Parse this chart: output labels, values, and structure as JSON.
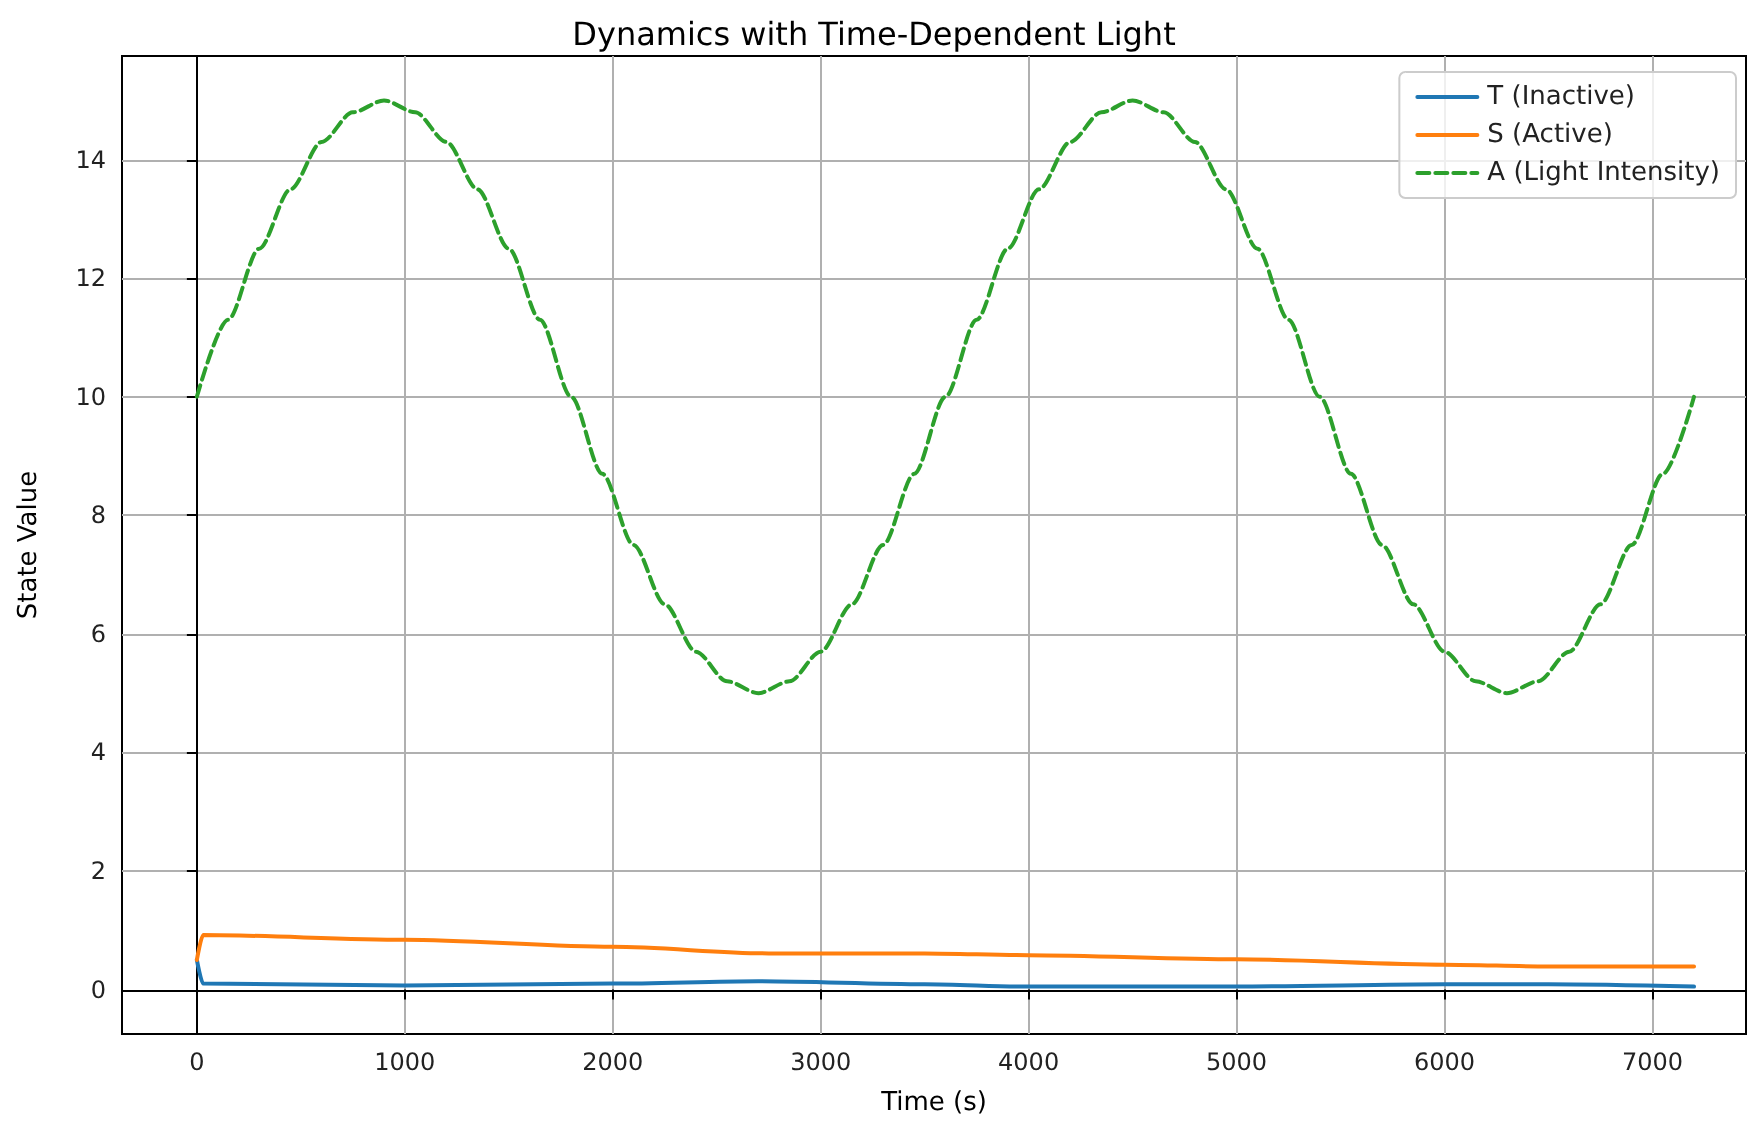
{
  "chart_data": {
    "type": "line",
    "title": "Dynamics with Time-Dependent Light",
    "xlabel": "Time (s)",
    "ylabel": "State Value",
    "xlim": [
      -360,
      7450
    ],
    "ylim": [
      -0.75,
      15.75
    ],
    "xticks": [
      0,
      1000,
      2000,
      3000,
      4000,
      5000,
      6000,
      7000
    ],
    "yticks": [
      0,
      2,
      4,
      6,
      8,
      10,
      12,
      14
    ],
    "grid": true,
    "legend": "top right",
    "marker": "none",
    "series": [
      {
        "name": "T (Inactive)",
        "color": "#1f77b4",
        "line_style": "solid",
        "x": [
          0,
          30,
          1000,
          2000,
          2700,
          3500,
          4000,
          5000,
          6000,
          6500,
          7200
        ],
        "values": [
          0.5,
          0.1,
          0.07,
          0.1,
          0.14,
          0.09,
          0.05,
          0.05,
          0.09,
          0.09,
          0.05
        ]
      },
      {
        "name": "S (Active)",
        "color": "#ff7f0e",
        "line_style": "solid",
        "x": [
          0,
          30,
          1000,
          2000,
          2750,
          3500,
          4000,
          5000,
          6000,
          6500,
          7200
        ],
        "values": [
          0.5,
          0.92,
          0.84,
          0.72,
          0.61,
          0.61,
          0.58,
          0.51,
          0.42,
          0.39,
          0.39
        ]
      },
      {
        "name": "A (Light Intensity)",
        "color": "#2ca02c",
        "line_style": "dashed",
        "x": [
          0,
          150,
          300,
          450,
          600,
          750,
          900,
          1050,
          1200,
          1350,
          1500,
          1650,
          1800,
          1950,
          2100,
          2250,
          2400,
          2550,
          2700,
          2850,
          3000,
          3150,
          3300,
          3450,
          3600,
          3750,
          3900,
          4050,
          4200,
          4350,
          4500,
          4650,
          4800,
          4950,
          5100,
          5250,
          5400,
          5550,
          5700,
          5850,
          6000,
          6150,
          6300,
          6450,
          6600,
          6750,
          6900,
          7050,
          7200
        ],
        "values": [
          10,
          11.3,
          12.5,
          13.5,
          14.3,
          14.8,
          15,
          14.8,
          14.3,
          13.5,
          12.5,
          11.3,
          10,
          8.7,
          7.5,
          6.5,
          5.7,
          5.2,
          5,
          5.2,
          5.7,
          6.5,
          7.5,
          8.7,
          10,
          11.3,
          12.5,
          13.5,
          14.3,
          14.8,
          15,
          14.8,
          14.3,
          13.5,
          12.5,
          11.3,
          10,
          8.7,
          7.5,
          6.5,
          5.7,
          5.2,
          5,
          5.2,
          5.7,
          6.5,
          7.5,
          8.7,
          10
        ]
      }
    ]
  }
}
